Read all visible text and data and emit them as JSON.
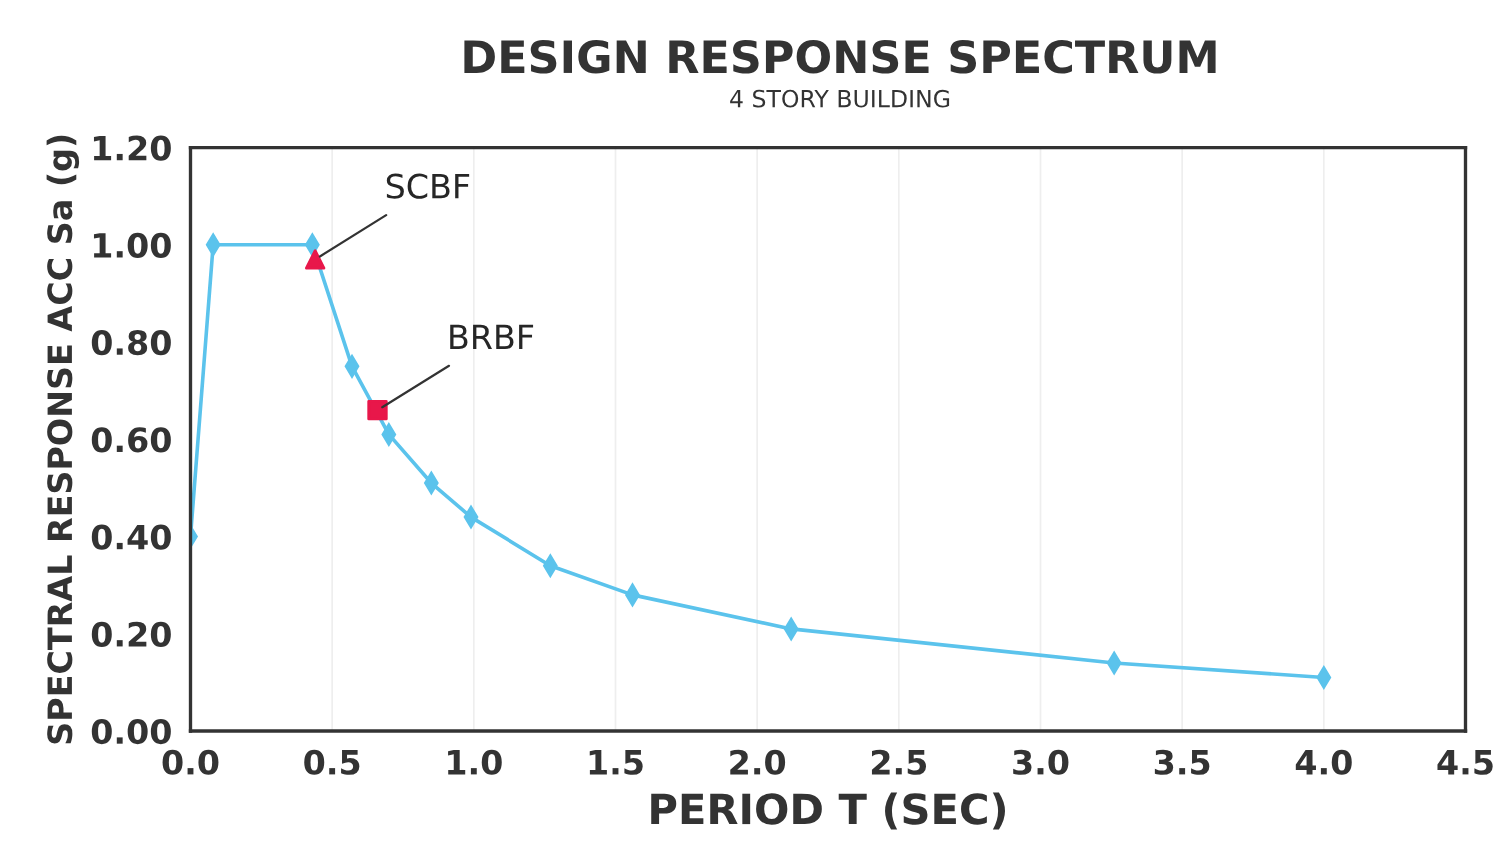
{
  "chart_data": {
    "type": "line",
    "title": "DESIGN RESPONSE SPECTRUM",
    "subtitle": "4 STORY BUILDING",
    "xlabel": "PERIOD T (SEC)",
    "ylabel": "SPECTRAL RESPONSE ACC Sa (g)",
    "series": [
      {
        "color": "#5bc3ec",
        "marker": "diamond",
        "x": [
          0.0,
          0.08,
          0.43,
          0.57,
          0.7,
          0.85,
          0.99,
          1.27,
          1.56,
          2.12,
          3.26,
          4.0
        ],
        "values": [
          0.4,
          1.0,
          1.0,
          0.75,
          0.61,
          0.51,
          0.44,
          0.34,
          0.28,
          0.21,
          0.14,
          0.11
        ]
      },
      {
        "type": "scatter",
        "color": "#e8174a",
        "marker": "triangle",
        "x": [
          0.44
        ],
        "values": [
          0.97
        ]
      },
      {
        "type": "scatter",
        "color": "#e8174a",
        "marker": "square",
        "x": [
          0.66
        ],
        "values": [
          0.66
        ]
      }
    ],
    "annotations": [
      {
        "text": "SCBF",
        "x": 0.44,
        "y": 0.97
      },
      {
        "text": "BRBF",
        "x": 0.66,
        "y": 0.66
      }
    ],
    "xlim": [
      0,
      4.5
    ],
    "xticks": [
      {
        "value": 0,
        "label": "0.0"
      },
      0.5,
      {
        "value": 1,
        "label": "1.0"
      },
      1.5,
      {
        "value": 2,
        "label": "2.0"
      },
      2.5,
      {
        "value": 3,
        "label": "3.0"
      },
      3.5,
      {
        "value": 4,
        "label": "4.0"
      },
      4.5
    ],
    "ylim": [
      0,
      1.2
    ],
    "yticks": [
      {
        "value": 0,
        "label": "0.00"
      },
      {
        "value": 0.2,
        "label": "0.20"
      },
      {
        "value": 0.4,
        "label": "0.40"
      },
      {
        "value": 0.6,
        "label": "0.60"
      },
      {
        "value": 0.8,
        "label": "0.80"
      },
      {
        "value": 1.0,
        "label": "1.00"
      },
      {
        "value": 1.2,
        "label": "1.20"
      }
    ],
    "grid": "x",
    "legend": false
  }
}
